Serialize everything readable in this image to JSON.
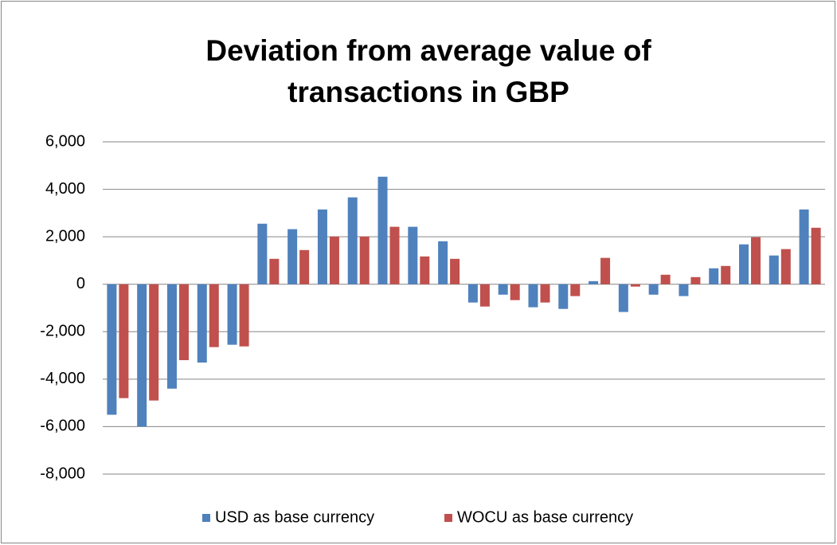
{
  "chart_data": {
    "type": "bar",
    "title": "Deviation from average value of transactions in GBP",
    "categories": [
      null,
      null,
      null,
      null,
      null,
      null,
      null,
      null,
      null,
      null,
      null,
      null,
      null,
      null,
      null,
      null,
      null,
      null,
      null,
      null,
      null,
      null,
      null,
      null
    ],
    "series": [
      {
        "name": "USD as base currency",
        "color": "#4f81bd",
        "values": [
          -5500,
          -6000,
          -4400,
          -3300,
          -2550,
          2550,
          2320,
          3150,
          3660,
          4530,
          2420,
          1810,
          -770,
          -440,
          -970,
          -1040,
          130,
          -1170,
          -440,
          -500,
          670,
          1680,
          1210,
          3150
        ]
      },
      {
        "name": "WOCU as base currency",
        "color": "#c0504d",
        "values": [
          -4800,
          -4900,
          -3200,
          -2650,
          -2620,
          1070,
          1440,
          2010,
          2010,
          2420,
          1170,
          1070,
          -940,
          -670,
          -770,
          -500,
          1110,
          -100,
          400,
          300,
          770,
          1980,
          1480,
          2380
        ]
      }
    ],
    "ylim": [
      -8000,
      6000
    ],
    "yticks": [
      {
        "value": -8000,
        "label": "-8,000"
      },
      {
        "value": -6000,
        "label": "-6,000"
      },
      {
        "value": -4000,
        "label": "-4,000"
      },
      {
        "value": -2000,
        "label": "-2,000"
      },
      0,
      {
        "value": 2000,
        "label": "2,000"
      },
      {
        "value": 4000,
        "label": "4,000"
      },
      {
        "value": 6000,
        "label": "6,000"
      }
    ],
    "grid": true,
    "legend": "bottom"
  }
}
